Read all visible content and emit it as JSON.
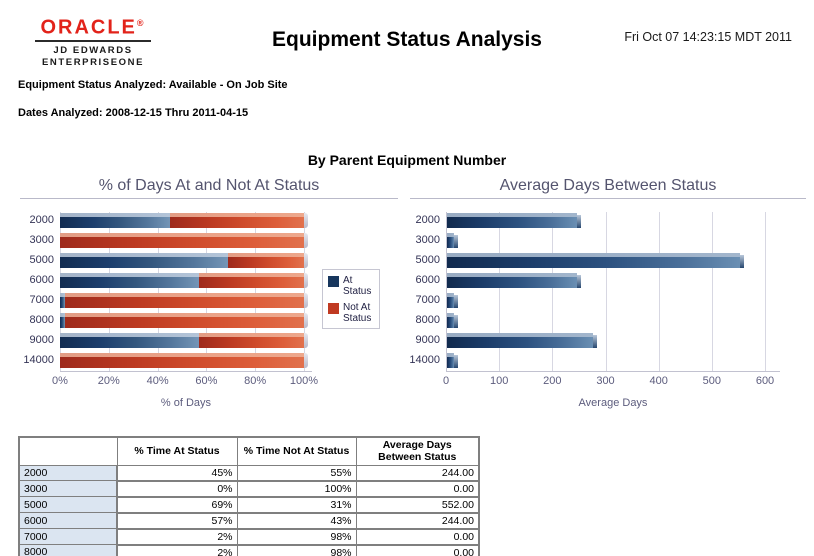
{
  "header": {
    "logo_brand": "ORACLE",
    "logo_mark": "®",
    "logo_sub1": "JD EDWARDS",
    "logo_sub2": "ENTERPRISEONE",
    "title": "Equipment Status Analysis",
    "timestamp": "Fri Oct 07 14:23:15 MDT 2011"
  },
  "info": {
    "status_line": "Equipment Status Analyzed: Available - On Job Site",
    "dates_line": "Dates Analyzed: 2008-12-15 Thru 2011-04-15"
  },
  "section_title": "By Parent Equipment Number",
  "colors": {
    "brand_red": "#e2231a",
    "at_status_blue": "#17365d",
    "not_at_status_red": "#c03a22",
    "chart_text_slate": "#5c5c7d",
    "table_row_label_bg": "#dbe5f1"
  },
  "chart_data": [
    {
      "type": "bar",
      "subtype": "horizontal-stacked",
      "title": "% of Days At and Not At Status",
      "categories": [
        "2000",
        "3000",
        "5000",
        "6000",
        "7000",
        "8000",
        "9000",
        "14000"
      ],
      "series": [
        {
          "name": "At Status",
          "values": [
            45,
            0,
            69,
            57,
            2,
            2,
            57,
            0
          ]
        },
        {
          "name": "Not At Status",
          "values": [
            55,
            100,
            31,
            43,
            98,
            98,
            43,
            100
          ]
        }
      ],
      "xlabel": "% of Days",
      "x_ticks": [
        "0%",
        "20%",
        "40%",
        "60%",
        "80%",
        "100%"
      ],
      "xlim": [
        0,
        100
      ],
      "grid": true,
      "legend_position": "right",
      "legend": [
        "At Status",
        "Not At Status"
      ]
    },
    {
      "type": "bar",
      "subtype": "horizontal",
      "title": "Average Days Between Status",
      "categories": [
        "2000",
        "3000",
        "5000",
        "6000",
        "7000",
        "8000",
        "9000",
        "14000"
      ],
      "values": [
        244,
        0,
        552,
        244,
        0,
        0,
        275,
        0
      ],
      "xlabel": "Average Days",
      "x_ticks": [
        "0",
        "100",
        "200",
        "300",
        "400",
        "500",
        "600"
      ],
      "xlim": [
        0,
        600
      ],
      "grid": true,
      "legend_position": "none"
    }
  ],
  "table": {
    "headers": [
      "% Time At Status",
      "% Time Not At Status",
      "Average Days Between Status"
    ],
    "rows": [
      {
        "label": "2000",
        "cells": [
          "45%",
          "55%",
          "244.00"
        ]
      },
      {
        "label": "3000",
        "cells": [
          "0%",
          "100%",
          "0.00"
        ]
      },
      {
        "label": "5000",
        "cells": [
          "69%",
          "31%",
          "552.00"
        ]
      },
      {
        "label": "6000",
        "cells": [
          "57%",
          "43%",
          "244.00"
        ]
      },
      {
        "label": "7000",
        "cells": [
          "2%",
          "98%",
          "0.00"
        ]
      },
      {
        "label": "8000",
        "cells": [
          "2%",
          "98%",
          "0.00"
        ]
      }
    ]
  }
}
